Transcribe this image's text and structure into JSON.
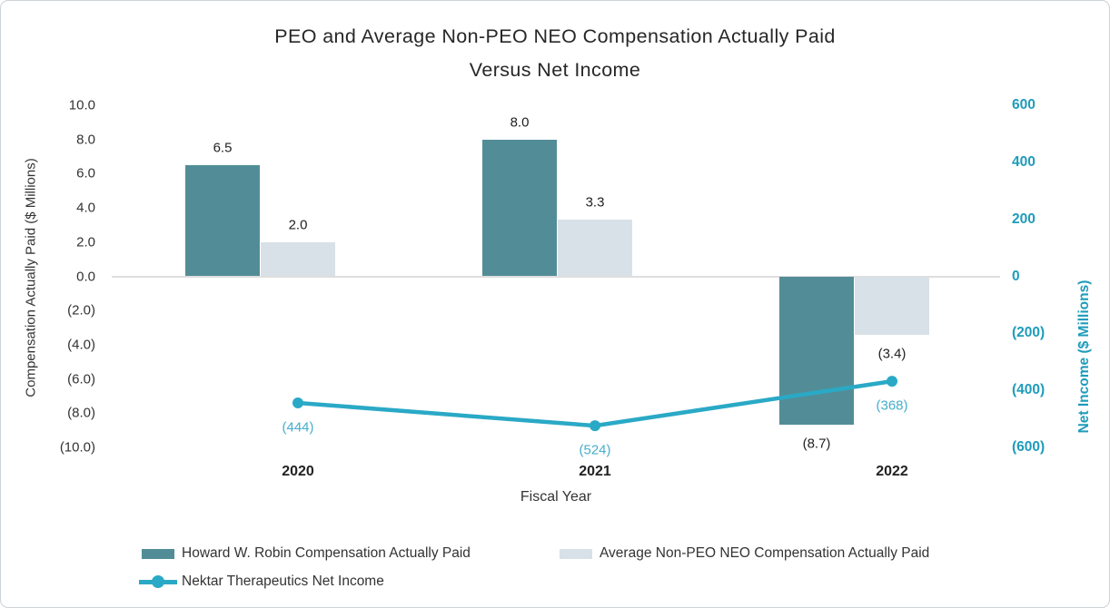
{
  "header": {
    "line1": "PEO and Average Non-PEO NEO Compensation Actually Paid",
    "line2": "Versus Net Income"
  },
  "colors": {
    "bar_dark_teal": "#528d97",
    "bar_light_gray": "#d8e1e7",
    "line_teal": "#2aa9c6",
    "right_axis_text": "#1e9cba",
    "point_label_teal": "#45aecb",
    "text_dark": "#272727",
    "gridline": "#dedede"
  },
  "chart_data": {
    "type": "bar+line combo, dual y-axis",
    "title": "PEO and Average Non-PEO NEO Compensation Actually Paid Versus Net Income",
    "categories": [
      "2020",
      "2021",
      "2022"
    ],
    "series": [
      {
        "name": "Howard W. Robin Compensation Actually Paid",
        "type": "bar",
        "axis": "left",
        "color": "#528d97",
        "values": [
          6.5,
          8.0,
          -8.7
        ],
        "labels": [
          "6.5",
          "8.0",
          "(8.7)"
        ]
      },
      {
        "name": "Average Non-PEO NEO Compensation Actually Paid",
        "type": "bar",
        "axis": "left",
        "color": "#d8e1e7",
        "values": [
          2.0,
          3.3,
          -3.4
        ],
        "labels": [
          "2.0",
          "3.3",
          "(3.4)"
        ]
      },
      {
        "name": "Nektar Therapeutics Net Income",
        "type": "line",
        "axis": "right",
        "color": "#2aa9c6",
        "values": [
          -444,
          -524,
          -368
        ],
        "labels": [
          "(444)",
          "(524)",
          "(368)"
        ]
      }
    ],
    "left_axis": {
      "title": "Compensation Actually Paid ($ Millions)",
      "tick_labels": [
        "10.0",
        "8.0",
        "6.0",
        "4.0",
        "2.0",
        "0.0",
        "(2.0)",
        "(4.0)",
        "(6.0)",
        "(8.0)",
        "(10.0)"
      ],
      "tick_values": [
        10,
        8,
        6,
        4,
        2,
        0,
        -2,
        -4,
        -6,
        -8,
        -10
      ],
      "range": [
        -10,
        10
      ],
      "grid": "zero line only"
    },
    "right_axis": {
      "title": "Net Income ($ Millions)",
      "tick_labels": [
        "600",
        "400",
        "200",
        "0",
        "(200)",
        "(400)",
        "(600)"
      ],
      "tick_values": [
        600,
        400,
        200,
        0,
        -200,
        -400,
        -600
      ],
      "range": [
        -600,
        600
      ]
    },
    "x_axis": {
      "title": "Fiscal Year"
    },
    "legend_position": "bottom-left, two rows"
  },
  "legend": {
    "items": [
      {
        "label": "Howard W. Robin Compensation Actually Paid",
        "type": "bar",
        "color": "#528d97"
      },
      {
        "label": "Average Non-PEO NEO Compensation Actually Paid",
        "type": "bar",
        "color": "#d8e1e7"
      },
      {
        "label": "Nektar Therapeutics Net Income",
        "type": "line",
        "color": "#2aa9c6"
      }
    ]
  }
}
